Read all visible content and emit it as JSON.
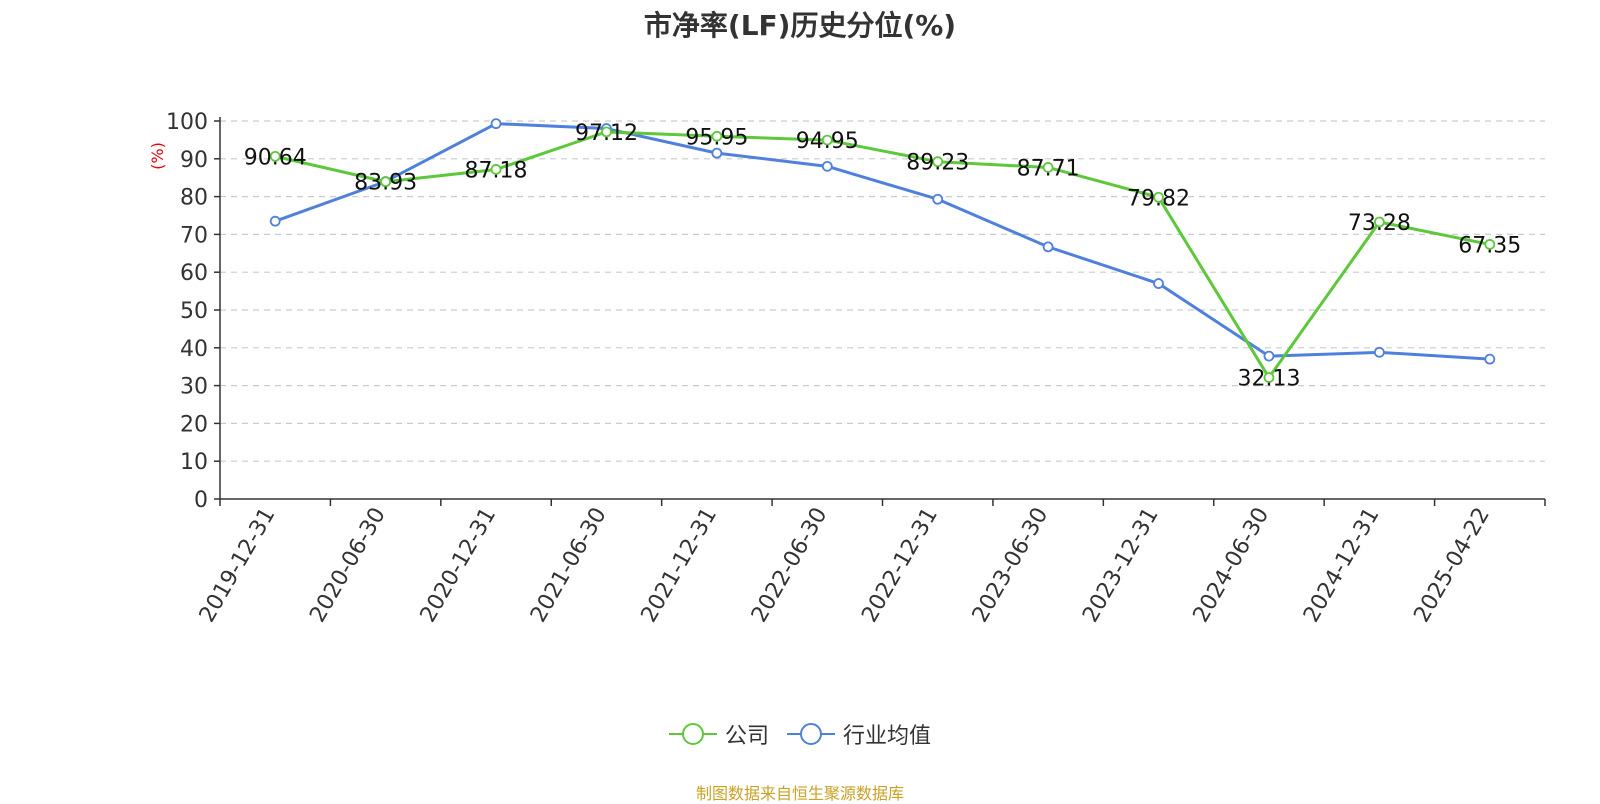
{
  "chart_data": {
    "type": "line",
    "title": "市净率(LF)历史分位(%)",
    "ylabel": "(%)",
    "ylim": [
      0,
      100
    ],
    "yticks": [
      0,
      10,
      20,
      30,
      40,
      50,
      60,
      70,
      80,
      90,
      100
    ],
    "grid": true,
    "legend_position": "bottom",
    "categories": [
      "2019-12-31",
      "2020-06-30",
      "2020-12-31",
      "2021-06-30",
      "2021-12-31",
      "2022-06-30",
      "2022-12-31",
      "2023-06-30",
      "2023-12-31",
      "2024-06-30",
      "2024-12-31",
      "2025-04-22"
    ],
    "series": [
      {
        "name": "公司",
        "color": "#5cc83a",
        "values": [
          90.64,
          83.93,
          87.18,
          97.12,
          95.95,
          94.95,
          89.23,
          87.71,
          79.82,
          32.13,
          73.28,
          67.35
        ],
        "labels": [
          "90.64",
          "83.93",
          "87.18",
          "97.12",
          "95.95",
          "94.95",
          "89.23",
          "87.71",
          "79.82",
          "32.13",
          "73.28",
          "67.35"
        ]
      },
      {
        "name": "行业均值",
        "color": "#4f81dc",
        "values": [
          73.5,
          84,
          99.3,
          98,
          91.5,
          88,
          79.3,
          66.7,
          57,
          37.8,
          38.8,
          37
        ]
      }
    ]
  },
  "source_note": "制图数据来自恒生聚源数据库"
}
